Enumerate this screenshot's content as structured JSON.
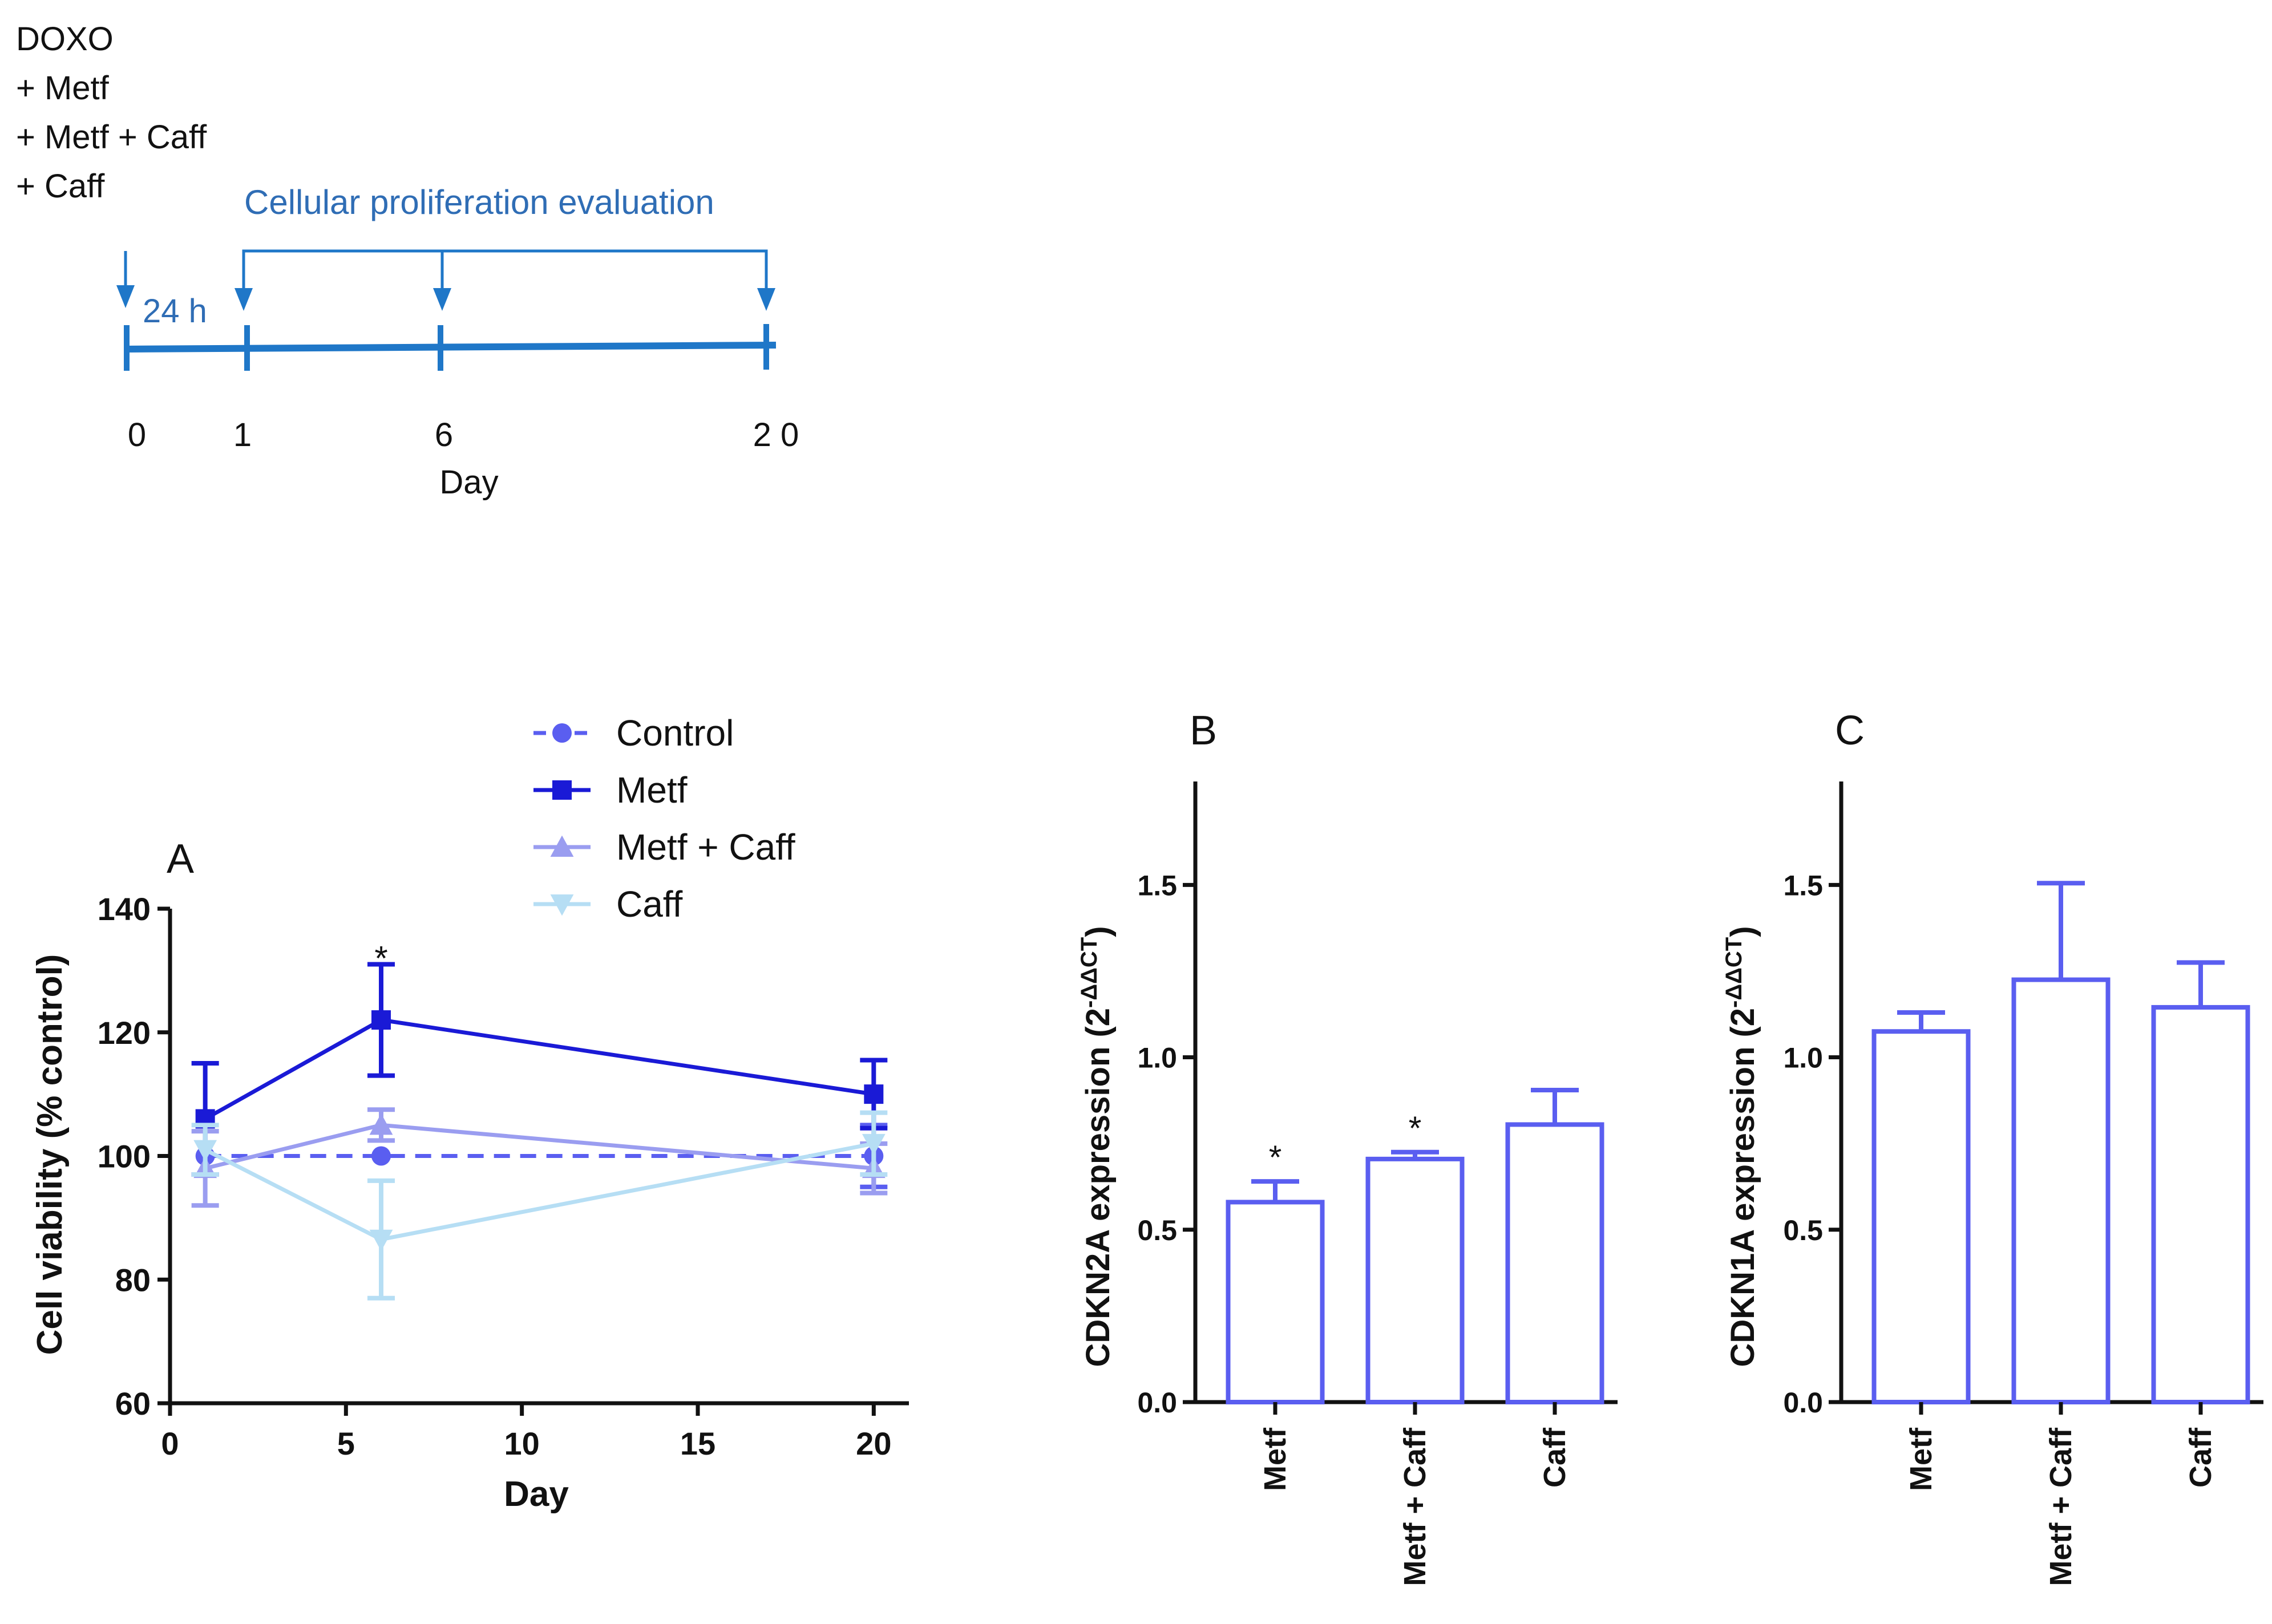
{
  "schematic": {
    "treatments": [
      "DOXO",
      "+ Metf",
      "+ Metf + Caff",
      "+ Caff"
    ],
    "interval_label": "24 h",
    "evaluation_label": "Cellular proliferation evaluation",
    "days": [
      "0",
      "1",
      "6",
      "2 0"
    ],
    "axis_label": "Day",
    "colors": {
      "line": "#1f77c8",
      "text": "#2f6db5"
    }
  },
  "chart_data": [
    {
      "panel": "A",
      "type": "line",
      "xlabel": "Day",
      "ylabel": "Cell viability (% control)",
      "xlim": [
        0,
        21
      ],
      "ylim": [
        60,
        140
      ],
      "xticks": [
        0,
        5,
        10,
        15,
        20
      ],
      "yticks": [
        60,
        80,
        100,
        120,
        140
      ],
      "x": [
        1,
        6,
        20
      ],
      "series": [
        {
          "name": "Control",
          "values": [
            100,
            100,
            100
          ],
          "errors": [
            0,
            0,
            5
          ],
          "marker": "circle",
          "dashed": true,
          "color": "#5a5ef0"
        },
        {
          "name": "Metf",
          "values": [
            106,
            122,
            110
          ],
          "errors": [
            9,
            9,
            5.5
          ],
          "marker": "square",
          "dashed": false,
          "color": "#1a1ad6"
        },
        {
          "name": "Metf + Caff",
          "values": [
            98,
            105,
            98
          ],
          "errors": [
            6,
            2.5,
            4
          ],
          "marker": "triangle-up",
          "dashed": false,
          "color": "#9a9df0"
        },
        {
          "name": "Caff",
          "values": [
            101,
            86.5,
            102
          ],
          "errors": [
            4,
            9.5,
            5
          ],
          "marker": "triangle-down",
          "dashed": false,
          "color": "#b6def4"
        }
      ],
      "annotations": [
        {
          "x": 6,
          "y": 131,
          "text": "*"
        }
      ]
    },
    {
      "panel": "B",
      "type": "bar",
      "ylabel_main": "CDKN2A expression (2",
      "ylabel_sup": "-ΔΔCT",
      "ylabel_close": ")",
      "categories": [
        "Metf",
        "Metf + Caff",
        "Caff"
      ],
      "values": [
        0.58,
        0.705,
        0.805
      ],
      "errors": [
        0.06,
        0.02,
        0.1
      ],
      "ylim": [
        0,
        1.8
      ],
      "yticks": [
        "0.0",
        "0.5",
        "1.0",
        "1.5"
      ],
      "significance": [
        "*",
        "*",
        ""
      ],
      "color": "#5a5ef0"
    },
    {
      "panel": "C",
      "type": "bar",
      "ylabel_main": "CDKN1A expression (2",
      "ylabel_sup": "-ΔΔCT",
      "ylabel_close": ")",
      "categories": [
        "Metf",
        "Metf + Caff",
        "Caff"
      ],
      "values": [
        1.075,
        1.225,
        1.145
      ],
      "errors": [
        0.055,
        0.28,
        0.13
      ],
      "ylim": [
        0,
        1.8
      ],
      "yticks": [
        "0.0",
        "0.5",
        "1.0",
        "1.5"
      ],
      "significance": [
        "",
        "",
        ""
      ],
      "color": "#5a5ef0"
    }
  ]
}
